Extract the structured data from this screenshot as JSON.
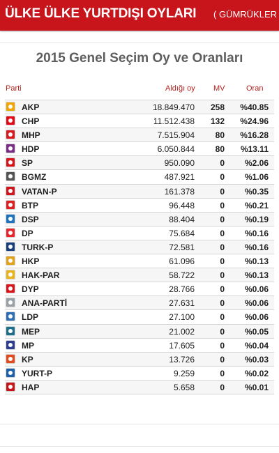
{
  "header": {
    "title": "ÜLKE ÜLKE YURTDIŞI OYLARI",
    "subtitle": "( GÜMRÜKLER / "
  },
  "page_title": "2015 Genel Seçim Oy ve Oranları",
  "columns": {
    "party": "Parti",
    "votes": "Aldığı oy",
    "mv": "MV",
    "rate": "Oran"
  },
  "colors": {
    "header_bg": "#c8141b",
    "column_header": "#b3221f",
    "title": "#5e5e5e"
  },
  "rows": [
    {
      "party": "AKP",
      "votes": "18.849.470",
      "mv": "258",
      "rate": "%40.85",
      "logo_color": "#f2a400",
      "icon": "akp-logo-icon"
    },
    {
      "party": "CHP",
      "votes": "11.512.438",
      "mv": "132",
      "rate": "%24.96",
      "logo_color": "#e30a17",
      "icon": "chp-logo-icon"
    },
    {
      "party": "MHP",
      "votes": "7.515.904",
      "mv": "80",
      "rate": "%16.28",
      "logo_color": "#d71920",
      "icon": "mhp-logo-icon"
    },
    {
      "party": "HDP",
      "votes": "6.050.844",
      "mv": "80",
      "rate": "%13.11",
      "logo_color": "#7a2d85",
      "icon": "hdp-logo-icon"
    },
    {
      "party": "SP",
      "votes": "950.090",
      "mv": "0",
      "rate": "%2.06",
      "logo_color": "#d7141a",
      "icon": "sp-logo-icon"
    },
    {
      "party": "BGMZ",
      "votes": "487.921",
      "mv": "0",
      "rate": "%1.06",
      "logo_color": "#555555",
      "icon": "bgmz-logo-icon"
    },
    {
      "party": "VATAN-P",
      "votes": "161.378",
      "mv": "0",
      "rate": "%0.35",
      "logo_color": "#d2141c",
      "icon": "vatan-p-logo-icon"
    },
    {
      "party": "BTP",
      "votes": "96.448",
      "mv": "0",
      "rate": "%0.21",
      "logo_color": "#e02020",
      "icon": "btp-logo-icon"
    },
    {
      "party": "DSP",
      "votes": "88.404",
      "mv": "0",
      "rate": "%0.19",
      "logo_color": "#1e73be",
      "icon": "dsp-logo-icon"
    },
    {
      "party": "DP",
      "votes": "75.684",
      "mv": "0",
      "rate": "%0.16",
      "logo_color": "#e8262b",
      "icon": "dp-logo-icon"
    },
    {
      "party": "TURK-P",
      "votes": "72.581",
      "mv": "0",
      "rate": "%0.16",
      "logo_color": "#1b3f7a",
      "icon": "turk-p-logo-icon"
    },
    {
      "party": "HKP",
      "votes": "61.096",
      "mv": "0",
      "rate": "%0.13",
      "logo_color": "#e3a21a",
      "icon": "hkp-logo-icon"
    },
    {
      "party": "HAK-PAR",
      "votes": "58.722",
      "mv": "0",
      "rate": "%0.13",
      "logo_color": "#e8b31b",
      "icon": "hak-par-logo-icon"
    },
    {
      "party": "DYP",
      "votes": "28.766",
      "mv": "0",
      "rate": "%0.06",
      "logo_color": "#d9141b",
      "icon": "dyp-logo-icon"
    },
    {
      "party": "ANA-PARTİ",
      "votes": "27.631",
      "mv": "0",
      "rate": "%0.06",
      "logo_color": "#9aa0a6",
      "icon": "ana-parti-logo-icon"
    },
    {
      "party": "LDP",
      "votes": "27.100",
      "mv": "0",
      "rate": "%0.06",
      "logo_color": "#2f6db5",
      "icon": "ldp-logo-icon"
    },
    {
      "party": "MEP",
      "votes": "21.002",
      "mv": "0",
      "rate": "%0.05",
      "logo_color": "#1f6f8b",
      "icon": "mep-logo-icon"
    },
    {
      "party": "MP",
      "votes": "17.605",
      "mv": "0",
      "rate": "%0.04",
      "logo_color": "#2c3e8f",
      "icon": "mp-logo-icon"
    },
    {
      "party": "KP",
      "votes": "13.726",
      "mv": "0",
      "rate": "%0.03",
      "logo_color": "#e34b1f",
      "icon": "kp-logo-icon"
    },
    {
      "party": "YURT-P",
      "votes": "9.259",
      "mv": "0",
      "rate": "%0.02",
      "logo_color": "#1d5fa8",
      "icon": "yurt-p-logo-icon"
    },
    {
      "party": "HAP",
      "votes": "5.658",
      "mv": "0",
      "rate": "%0.01",
      "logo_color": "#c8141b",
      "icon": "hap-logo-icon"
    }
  ]
}
